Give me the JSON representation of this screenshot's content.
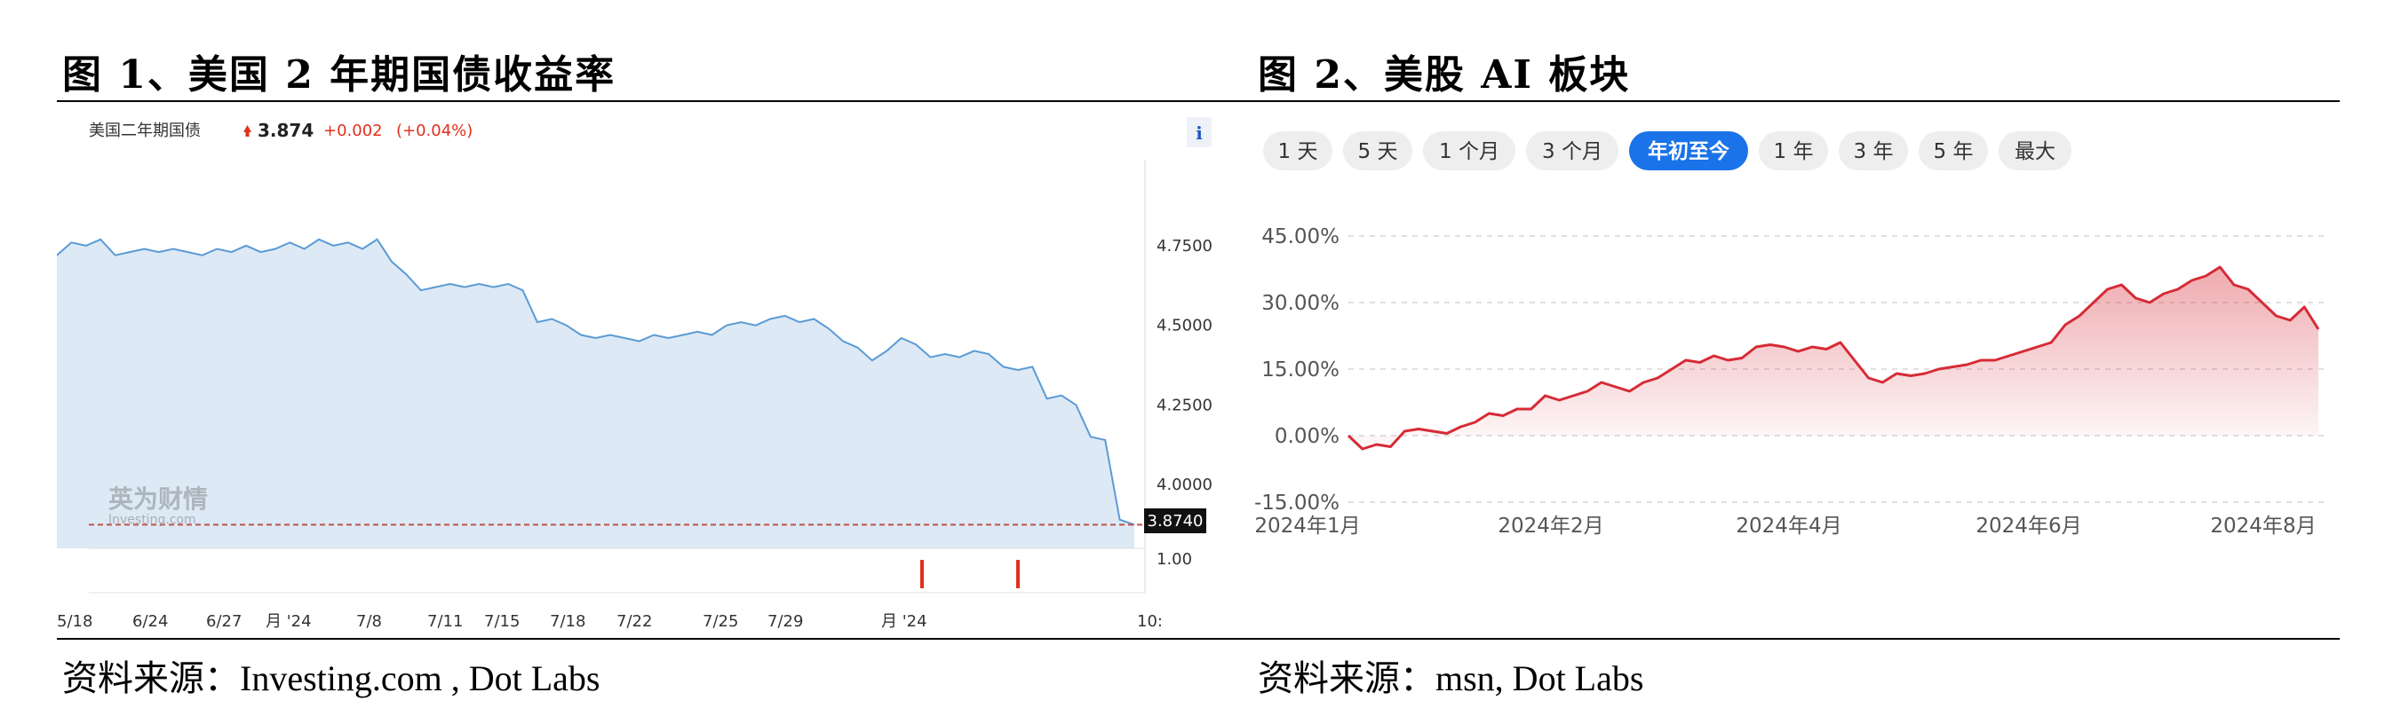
{
  "figure1": {
    "title": "图 1、美国 2 年期国债收益率",
    "source": "资料来源：Investing.com , Dot Labs",
    "header": {
      "name": "美国二年期国债",
      "price": "3.874",
      "change": "+0.002",
      "change_pct": "(+0.04%)"
    },
    "info_icon": "i",
    "watermark": {
      "main": "英为财情",
      "sub": "Investing.com"
    },
    "current_label": "3.8740",
    "lower_panel_label": "1.00",
    "colors": {
      "line": "#5b9bd5",
      "fill": "#dde9f5",
      "up": "#e0301e",
      "ref": "#c0504d"
    }
  },
  "figure2": {
    "title": "图 2、美股 AI 板块",
    "source": "资料来源：msn, Dot Labs",
    "range_buttons": [
      {
        "label": "1 天",
        "active": false
      },
      {
        "label": "5 天",
        "active": false
      },
      {
        "label": "1 个月",
        "active": false
      },
      {
        "label": "3 个月",
        "active": false
      },
      {
        "label": "年初至今",
        "active": true
      },
      {
        "label": "1 年",
        "active": false
      },
      {
        "label": "3 年",
        "active": false
      },
      {
        "label": "5 年",
        "active": false
      },
      {
        "label": "最大",
        "active": false
      }
    ],
    "colors": {
      "line": "#d62b36",
      "active": "#1a73e8",
      "pill": "#eeeeee"
    }
  },
  "chart_data": [
    {
      "type": "area",
      "series": [
        {
          "name": "美国二年期国债",
          "values": [
            4.72,
            4.76,
            4.75,
            4.77,
            4.72,
            4.73,
            4.74,
            4.73,
            4.74,
            4.73,
            4.72,
            4.74,
            4.73,
            4.75,
            4.73,
            4.74,
            4.76,
            4.74,
            4.77,
            4.75,
            4.76,
            4.74,
            4.77,
            4.7,
            4.66,
            4.61,
            4.62,
            4.63,
            4.62,
            4.63,
            4.62,
            4.63,
            4.61,
            4.51,
            4.52,
            4.5,
            4.47,
            4.46,
            4.47,
            4.46,
            4.45,
            4.47,
            4.46,
            4.47,
            4.48,
            4.47,
            4.5,
            4.51,
            4.5,
            4.52,
            4.53,
            4.51,
            4.52,
            4.49,
            4.45,
            4.43,
            4.39,
            4.42,
            4.46,
            4.44,
            4.4,
            4.41,
            4.4,
            4.42,
            4.41,
            4.37,
            4.36,
            4.37,
            4.27,
            4.28,
            4.25,
            4.15,
            4.14,
            3.89,
            3.874
          ]
        }
      ],
      "x_tick_labels": [
        "5/18",
        "6/24",
        "6/27",
        "月 '24",
        "7/8",
        "7/11",
        "7/15",
        "7/18",
        "7/22",
        "7/25",
        "7/29",
        "月 '24",
        "10:"
      ],
      "y_tick_labels": [
        "4.7500",
        "4.5000",
        "4.2500",
        "4.0000"
      ],
      "ylim": [
        3.8,
        5.02
      ],
      "grid": false
    },
    {
      "type": "area",
      "series": [
        {
          "name": "美股 AI 板块",
          "values": [
            0.0,
            -3.0,
            -2.0,
            -2.5,
            1.0,
            1.5,
            1.0,
            0.5,
            2.0,
            3.0,
            5.0,
            4.5,
            6.0,
            6.0,
            9.0,
            8.0,
            9.0,
            10.0,
            12.0,
            11.0,
            10.0,
            12.0,
            13.0,
            15.0,
            17.0,
            16.5,
            18.0,
            17.0,
            17.5,
            20.0,
            20.5,
            20.0,
            19.0,
            20.0,
            19.5,
            21.0,
            17.0,
            13.0,
            12.0,
            14.0,
            13.5,
            14.0,
            15.0,
            15.5,
            16.0,
            17.0,
            17.0,
            18.0,
            19.0,
            20.0,
            21.0,
            25.0,
            27.0,
            30.0,
            33.0,
            34.0,
            31.0,
            30.0,
            32.0,
            33.0,
            35.0,
            36.0,
            38.0,
            34.0,
            33.0,
            30.0,
            27.0,
            26.0,
            29.0,
            24.0
          ]
        }
      ],
      "x_tick_labels": [
        "2024年1月",
        "2024年2月",
        "2024年4月",
        "2024年6月",
        "2024年8月"
      ],
      "y_tick_labels": [
        "45.00%",
        "30.00%",
        "15.00%",
        "0.00%",
        "-15.00%"
      ],
      "ylim": [
        -15,
        45
      ],
      "grid": true
    }
  ]
}
